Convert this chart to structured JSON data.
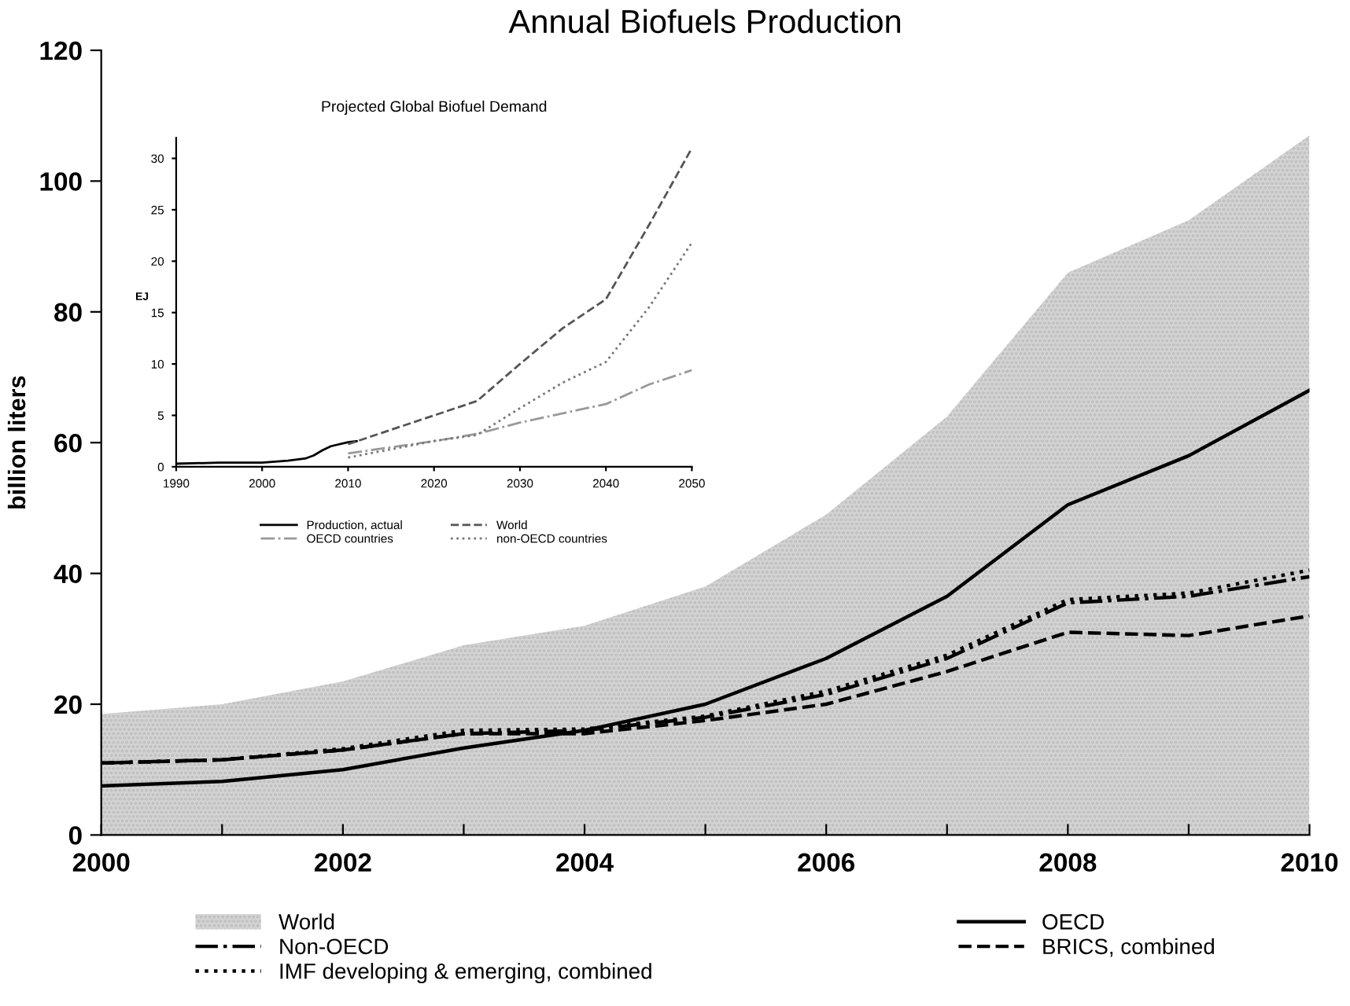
{
  "chart_data": [
    {
      "type": "area",
      "title": "Annual Biofuels Production",
      "ylabel": "billion liters",
      "x": [
        2000,
        2001,
        2002,
        2003,
        2004,
        2005,
        2006,
        2007,
        2008,
        2009,
        2010
      ],
      "xlim": [
        2000,
        2010
      ],
      "ylim": [
        0,
        120
      ],
      "xticks": [
        2000,
        {
          "value": 2001,
          "label": null
        },
        2002,
        {
          "value": 2003,
          "label": null
        },
        2004,
        {
          "value": 2005,
          "label": null
        },
        2006,
        {
          "value": 2007,
          "label": null
        },
        2008,
        {
          "value": 2009,
          "label": null
        },
        2010
      ],
      "yticks": [
        0,
        20,
        40,
        60,
        80,
        100,
        120
      ],
      "grid": false,
      "legend": "bottom",
      "series": [
        {
          "name": "World",
          "type": "area",
          "color": "#d4d4d4",
          "values": [
            18.5,
            20,
            23.5,
            29,
            32,
            38,
            49,
            64,
            86,
            94,
            107
          ]
        },
        {
          "name": "OECD",
          "type": "line",
          "color": "#000000",
          "line_style": "solid",
          "values": [
            7.5,
            8.2,
            10,
            13.3,
            16,
            20,
            27,
            36.5,
            50.5,
            58,
            68
          ]
        },
        {
          "name": "Non-OECD",
          "type": "line",
          "color": "#000000",
          "line_style": "dashdot",
          "values": [
            11,
            11.5,
            13,
            15.5,
            16,
            18,
            21.5,
            27,
            35.5,
            36.5,
            39.5
          ]
        },
        {
          "name": "BRICS, combined",
          "type": "line",
          "color": "#000000",
          "line_style": "dashed",
          "values": [
            11,
            11.5,
            13,
            15.5,
            15.5,
            17.5,
            20,
            25,
            31,
            30.5,
            33.5
          ]
        },
        {
          "name": "IMF developing & emerging, combined",
          "type": "line",
          "color": "#000000",
          "line_style": "dotted",
          "values": [
            11,
            11.5,
            13.2,
            16,
            16.2,
            18.2,
            22,
            27.5,
            36,
            37,
            40.5
          ]
        }
      ]
    },
    {
      "type": "line",
      "title": "Projected Global Biofuel Demand",
      "ylabel": "EJ",
      "xlim": [
        1990,
        2050
      ],
      "ylim": [
        0,
        32
      ],
      "xticks": [
        1990,
        2000,
        2010,
        2020,
        2030,
        2040,
        2050
      ],
      "yticks": [
        0,
        5,
        10,
        15,
        20,
        25,
        30
      ],
      "grid": false,
      "legend": "bottom",
      "series": [
        {
          "name": "Production, actual",
          "color": "#000000",
          "line_style": "solid",
          "x": [
            1990,
            1995,
            2000,
            2003,
            2005,
            2006,
            2007,
            2008,
            2010,
            2011
          ],
          "values": [
            0.3,
            0.4,
            0.4,
            0.6,
            0.8,
            1.1,
            1.6,
            2.0,
            2.4,
            2.5
          ]
        },
        {
          "name": "World",
          "color": "#555555",
          "line_style": "dashed",
          "x": [
            2010,
            2015,
            2020,
            2025,
            2030,
            2035,
            2040,
            2045,
            2050
          ],
          "values": [
            2.2,
            3.6,
            5.0,
            6.4,
            10,
            13.5,
            16.3,
            23.5,
            31
          ]
        },
        {
          "name": "OECD countries",
          "color": "#999999",
          "line_style": "dashdot",
          "x": [
            2010,
            2015,
            2020,
            2025,
            2030,
            2035,
            2040,
            2045,
            2050
          ],
          "values": [
            1.3,
            1.9,
            2.5,
            3.2,
            4.3,
            5.2,
            6.1,
            8.0,
            9.4
          ]
        },
        {
          "name": "non-OECD countries",
          "color": "#777777",
          "line_style": "dotted",
          "x": [
            2010,
            2015,
            2020,
            2025,
            2030,
            2035,
            2040,
            2045,
            2050
          ],
          "values": [
            0.9,
            1.7,
            2.5,
            3.1,
            5.7,
            8.2,
            10.2,
            15.5,
            21.8
          ]
        }
      ]
    }
  ]
}
